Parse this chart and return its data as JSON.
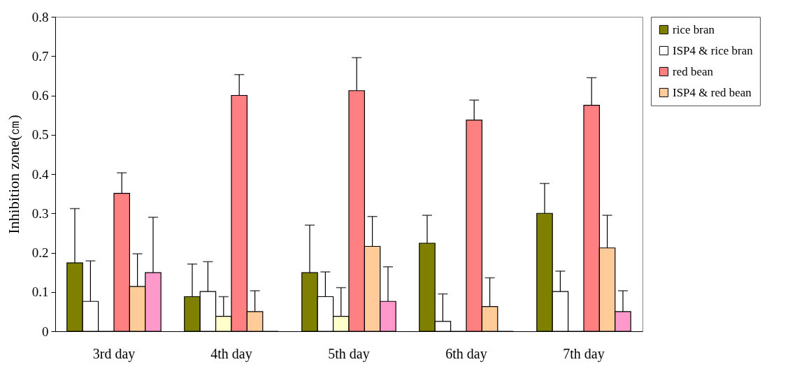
{
  "chart_data": {
    "type": "bar",
    "ylabel": "Inhibition zone(㎝)",
    "categories": [
      "3rd day",
      "4th day",
      "5th day",
      "6th day",
      "7th day"
    ],
    "series": [
      {
        "name": "rice bran",
        "color": "#808000",
        "values": [
          0.174,
          0.088,
          0.149,
          0.224,
          0.3
        ],
        "errors": [
          [
            0.174,
            0.312
          ],
          [
            0.088,
            0.171
          ],
          [
            0.149,
            0.27
          ],
          [
            0.224,
            0.295
          ],
          [
            0.3,
            0.376
          ]
        ]
      },
      {
        "name": "ISP4 & rice bran",
        "color": "#ffffff",
        "values": [
          0.076,
          0.101,
          0.088,
          0.025,
          0.101
        ],
        "errors": [
          [
            0.076,
            0.179
          ],
          [
            0.101,
            0.177
          ],
          [
            0.088,
            0.151
          ],
          [
            0.025,
            0.095
          ],
          [
            0.101,
            0.153
          ]
        ]
      },
      {
        "color": "#ffffcc",
        "values": [
          0,
          0.038,
          0.038,
          0,
          0
        ],
        "errors": [
          null,
          [
            0.038,
            0.088
          ],
          [
            0.038,
            0.111
          ],
          null,
          null
        ]
      },
      {
        "name": "red bean",
        "color": "#ff8080",
        "values": [
          0.351,
          0.6,
          0.612,
          0.537,
          0.575
        ],
        "errors": [
          [
            0.351,
            0.403
          ],
          [
            0.6,
            0.653
          ],
          [
            0.612,
            0.696
          ],
          [
            0.537,
            0.588
          ],
          [
            0.575,
            0.645
          ]
        ]
      },
      {
        "name": "ISP4 & red bean",
        "color": "#ffcc99",
        "values": [
          0.114,
          0.05,
          0.216,
          0.063,
          0.212
        ],
        "errors": [
          [
            0.114,
            0.197
          ],
          [
            0.05,
            0.103
          ],
          [
            0.216,
            0.292
          ],
          [
            0.063,
            0.136
          ],
          [
            0.212,
            0.295
          ]
        ]
      },
      {
        "color": "#ff99cc",
        "values": [
          0.149,
          0,
          0.076,
          0,
          0.05
        ],
        "errors": [
          [
            0.149,
            0.29
          ],
          null,
          [
            0.076,
            0.164
          ],
          null,
          [
            0.05,
            0.103
          ]
        ]
      }
    ],
    "ylim": [
      0,
      0.8
    ],
    "yticks": [
      0,
      0.1,
      0.2,
      0.3,
      0.4,
      0.5,
      0.6,
      0.7,
      0.8
    ],
    "grid": false,
    "legend": "right"
  }
}
